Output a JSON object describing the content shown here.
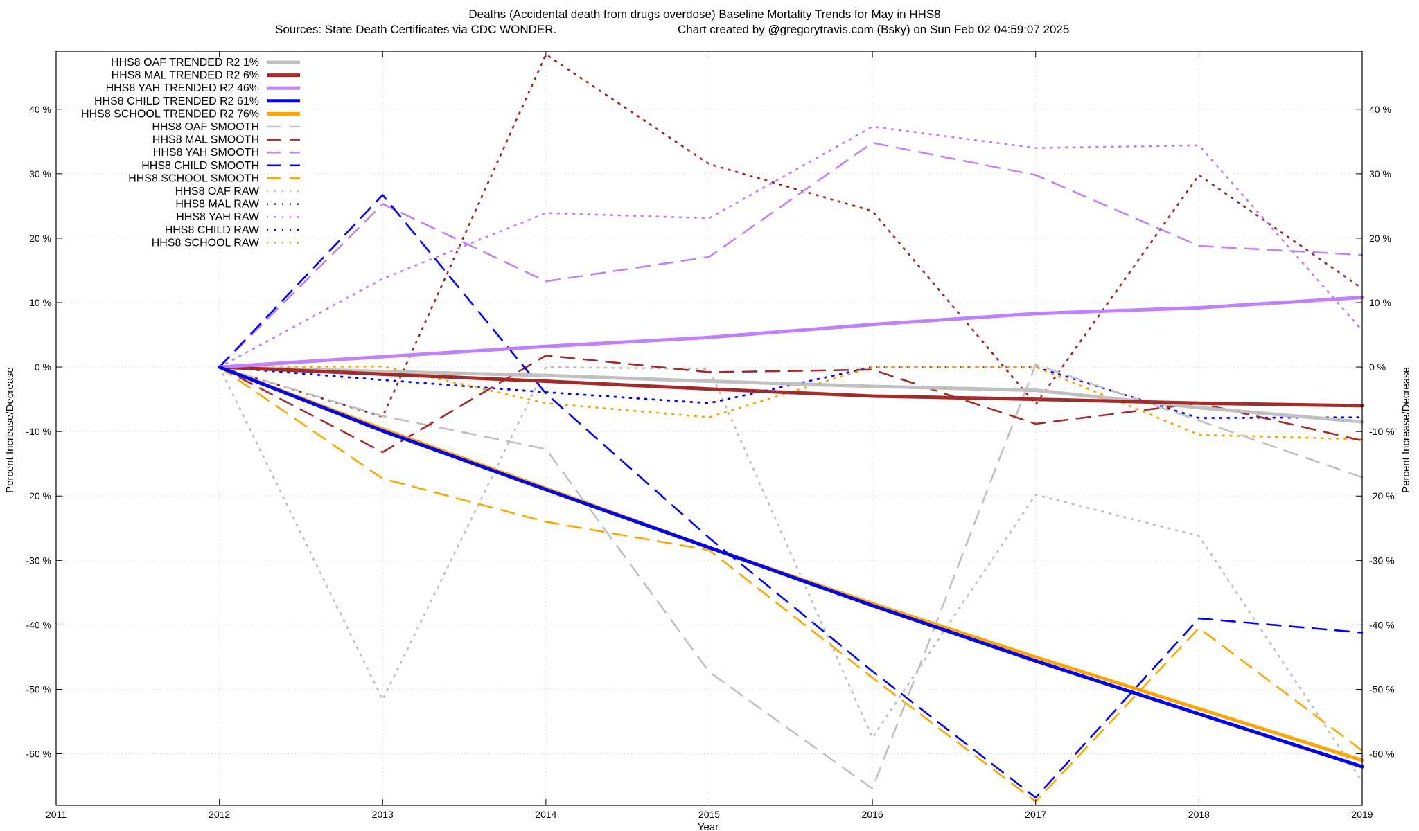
{
  "chart_data": {
    "type": "line",
    "title": "Deaths (Accidental death from drugs overdose)  Baseline Mortality Trends for May in HHS8",
    "subtitle_left": "Sources: State Death Certificates via CDC WONDER.",
    "subtitle_right": "Chart created by @gregorytravis.com (Bsky) on Sun Feb 02 04:59:07 2025",
    "xlabel": "Year",
    "ylabel": "Percent Increase/Decrease",
    "ylabel_right": "Percent Increase/Decrease",
    "xlim": [
      2011,
      2019
    ],
    "ylim": [
      -68,
      49
    ],
    "x_ticks": [
      2011,
      2012,
      2013,
      2014,
      2015,
      2016,
      2017,
      2018,
      2019
    ],
    "y_ticks": [
      40,
      30,
      20,
      10,
      0,
      -10,
      -20,
      -30,
      -40,
      -50,
      -60
    ],
    "y_tick_labels": [
      "40 %",
      "30 %",
      "20 %",
      "10 %",
      "0 %",
      "-10 %",
      "-20 %",
      "-30 %",
      "-40 %",
      "-50 %",
      "-60 %"
    ],
    "grid": true,
    "legend_position": "top-left",
    "x": [
      2012,
      2013,
      2014,
      2015,
      2016,
      2017,
      2018,
      2019
    ],
    "series": [
      {
        "name": "HHS8 OAF TRENDED R2",
        "r2": "1%",
        "style": "trend",
        "color": "#c0c0c0",
        "values": [
          0,
          -0.7,
          -1.3,
          -2.2,
          -3.0,
          -3.6,
          -6.3,
          -8.5
        ]
      },
      {
        "name": "HHS8 MAL TRENDED R2",
        "r2": "6%",
        "style": "trend",
        "color": "#a52a2a",
        "values": [
          0,
          -1.1,
          -2.2,
          -3.4,
          -4.5,
          -5.0,
          -5.6,
          -6.0
        ]
      },
      {
        "name": "HHS8 YAH TRENDED R2",
        "r2": "46%",
        "style": "trend",
        "color": "#c080ff",
        "values": [
          0,
          1.6,
          3.2,
          4.6,
          6.6,
          8.3,
          9.2,
          10.8
        ]
      },
      {
        "name": "HHS8 CHILD TRENDED R2",
        "r2": "61%",
        "style": "trend",
        "color": "#0000ff",
        "values": [
          0,
          -9.9,
          -19.0,
          -28.0,
          -37.0,
          -45.6,
          -53.8,
          -62.0
        ]
      },
      {
        "name": "HHS8 SCHOOL TRENDED R2",
        "r2": "76%",
        "style": "trend",
        "color": "#ffa500",
        "values": [
          0,
          -9.6,
          -18.8,
          -28.0,
          -36.7,
          -45.0,
          -53.0,
          -61.0
        ]
      },
      {
        "name": "HHS8 OAF SMOOTH",
        "style": "smooth",
        "color": "#c0c0c0",
        "values": [
          0,
          -7.6,
          -12.7,
          -47.3,
          -65.4,
          0.4,
          -8.3,
          -17.1
        ]
      },
      {
        "name": "HHS8 MAL SMOOTH",
        "style": "smooth",
        "color": "#a52a2a",
        "values": [
          0,
          -13.2,
          1.8,
          -0.8,
          -0.4,
          -8.8,
          -5.6,
          -11.4
        ]
      },
      {
        "name": "HHS8 YAH SMOOTH",
        "style": "smooth",
        "color": "#c080ff",
        "values": [
          0,
          25.3,
          13.3,
          17.1,
          34.8,
          29.8,
          18.8,
          17.4
        ]
      },
      {
        "name": "HHS8 CHILD SMOOTH",
        "style": "smooth",
        "color": "#0000ff",
        "values": [
          0,
          26.7,
          -4.1,
          -26.5,
          -47.2,
          -66.8,
          -39.0,
          -41.2
        ]
      },
      {
        "name": "HHS8 SCHOOL SMOOTH",
        "style": "smooth",
        "color": "#ffa500",
        "values": [
          0,
          -17.3,
          -24.0,
          -28.4,
          -48.2,
          -67.4,
          -40.5,
          -59.5
        ]
      },
      {
        "name": "HHS8 OAF RAW",
        "style": "raw",
        "color": "#c0c0c0",
        "values": [
          0,
          -51.6,
          0,
          -0.3,
          -57.5,
          -19.8,
          -26.2,
          -64.3
        ]
      },
      {
        "name": "HHS8 MAL RAW",
        "style": "raw",
        "color": "#a52a2a",
        "values": [
          0,
          -7.7,
          48.5,
          31.5,
          24.2,
          -5.8,
          29.8,
          12.2
        ]
      },
      {
        "name": "HHS8 YAH RAW",
        "style": "raw",
        "color": "#c080ff",
        "values": [
          0,
          13.7,
          23.9,
          23.1,
          37.3,
          34.0,
          34.4,
          5.7
        ]
      },
      {
        "name": "HHS8 CHILD RAW",
        "style": "raw",
        "color": "#0000ff",
        "values": [
          0,
          -2.0,
          -3.9,
          -5.6,
          0,
          0,
          -7.9,
          -7.8
        ]
      },
      {
        "name": "HHS8 SCHOOL RAW",
        "style": "raw",
        "color": "#ffa500",
        "values": [
          0,
          0.1,
          -5.6,
          -7.8,
          0,
          0,
          -10.5,
          -11.2
        ]
      }
    ]
  }
}
